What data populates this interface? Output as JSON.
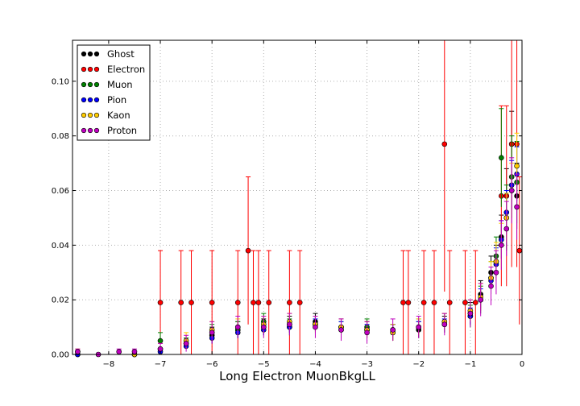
{
  "chart_data": {
    "type": "scatter",
    "title": "",
    "xlabel": "Long Electron MuonBkgLL",
    "ylabel": "",
    "xlim": [
      -8.7,
      0.0
    ],
    "ylim": [
      0.0,
      0.115
    ],
    "grid": true,
    "legend_position": "top-left",
    "x_ticks": [
      -8,
      -7,
      -6,
      -5,
      -4,
      -3,
      -2,
      -1,
      0
    ],
    "x_tick_labels": [
      "−8",
      "−7",
      "−6",
      "−5",
      "−4",
      "−3",
      "−2",
      "−1",
      "0"
    ],
    "y_ticks": [
      0.0,
      0.02,
      0.04,
      0.06,
      0.08,
      0.1
    ],
    "y_tick_labels": [
      "0.00",
      "0.02",
      "0.04",
      "0.06",
      "0.08",
      "0.10"
    ],
    "series": [
      {
        "name": "Ghost",
        "color": "#000000",
        "x": [
          -8.6,
          -7.5,
          -6.5,
          -6.0,
          -5.5,
          -5.0,
          -4.5,
          -4.0,
          -3.5,
          -3.0,
          -2.5,
          -2.0,
          -1.5,
          -1.0,
          -0.8,
          -0.6,
          -0.5,
          -0.4,
          -0.3,
          -0.2,
          -0.1
        ],
        "y": [
          0.0,
          0.0,
          0.004,
          0.007,
          0.009,
          0.01,
          0.011,
          0.012,
          0.01,
          0.009,
          0.008,
          0.009,
          0.011,
          0.015,
          0.022,
          0.03,
          0.034,
          0.043,
          0.058,
          0.077,
          0.058
        ],
        "err": [
          0.0,
          0.0,
          0.002,
          0.003,
          0.003,
          0.003,
          0.003,
          0.003,
          0.003,
          0.003,
          0.003,
          0.003,
          0.003,
          0.004,
          0.005,
          0.006,
          0.006,
          0.008,
          0.01,
          0.012,
          0.012
        ]
      },
      {
        "name": "Electron",
        "color": "#ff0000",
        "x": [
          -7.0,
          -6.6,
          -6.4,
          -6.0,
          -5.5,
          -5.3,
          -5.2,
          -5.1,
          -4.9,
          -4.5,
          -4.3,
          -2.3,
          -2.2,
          -1.9,
          -1.7,
          -1.5,
          -1.4,
          -1.1,
          -0.9,
          -0.4,
          -0.3,
          -0.2,
          -0.1,
          -0.05
        ],
        "y": [
          0.019,
          0.019,
          0.019,
          0.019,
          0.019,
          0.038,
          0.019,
          0.019,
          0.019,
          0.019,
          0.019,
          0.019,
          0.019,
          0.019,
          0.019,
          0.077,
          0.019,
          0.019,
          0.019,
          0.058,
          0.058,
          0.077,
          0.077,
          0.038
        ],
        "err": [
          0.019,
          0.019,
          0.019,
          0.019,
          0.019,
          0.027,
          0.019,
          0.019,
          0.019,
          0.019,
          0.019,
          0.019,
          0.019,
          0.019,
          0.019,
          0.054,
          0.019,
          0.019,
          0.019,
          0.033,
          0.033,
          0.045,
          0.045,
          0.027
        ]
      },
      {
        "name": "Muon",
        "color": "#008000",
        "x": [
          -7.0,
          -6.5,
          -6.0,
          -5.5,
          -5.0,
          -4.5,
          -4.0,
          -3.5,
          -3.0,
          -2.5,
          -2.0,
          -1.5,
          -1.0,
          -0.8,
          -0.6,
          -0.5,
          -0.4,
          -0.3,
          -0.2,
          -0.1
        ],
        "y": [
          0.005,
          0.004,
          0.008,
          0.009,
          0.012,
          0.01,
          0.011,
          0.009,
          0.01,
          0.008,
          0.01,
          0.012,
          0.014,
          0.02,
          0.028,
          0.036,
          0.072,
          0.05,
          0.065,
          0.063
        ],
        "err": [
          0.003,
          0.002,
          0.003,
          0.003,
          0.003,
          0.003,
          0.003,
          0.003,
          0.003,
          0.003,
          0.003,
          0.003,
          0.004,
          0.005,
          0.006,
          0.007,
          0.018,
          0.012,
          0.015,
          0.015
        ]
      },
      {
        "name": "Pion",
        "color": "#0000ff",
        "x": [
          -8.6,
          -7.5,
          -7.0,
          -6.5,
          -6.0,
          -5.5,
          -5.0,
          -4.5,
          -4.0,
          -3.5,
          -3.0,
          -2.5,
          -2.0,
          -1.5,
          -1.0,
          -0.8,
          -0.6,
          -0.5,
          -0.4,
          -0.3,
          -0.2,
          -0.1
        ],
        "y": [
          0.0,
          0.0,
          0.001,
          0.003,
          0.006,
          0.008,
          0.009,
          0.01,
          0.011,
          0.01,
          0.009,
          0.009,
          0.01,
          0.011,
          0.014,
          0.02,
          0.027,
          0.033,
          0.042,
          0.052,
          0.062,
          0.066
        ],
        "err": [
          0.0,
          0.0,
          0.001,
          0.001,
          0.002,
          0.002,
          0.002,
          0.002,
          0.002,
          0.002,
          0.002,
          0.002,
          0.002,
          0.002,
          0.003,
          0.004,
          0.005,
          0.006,
          0.007,
          0.008,
          0.009,
          0.01
        ]
      },
      {
        "name": "Kaon",
        "color": "#ffcc00",
        "x": [
          -8.6,
          -7.5,
          -7.0,
          -6.5,
          -6.0,
          -5.5,
          -5.0,
          -4.5,
          -4.0,
          -3.5,
          -3.0,
          -2.5,
          -2.0,
          -1.5,
          -1.0,
          -0.8,
          -0.6,
          -0.5,
          -0.4,
          -0.3,
          -0.2,
          -0.1
        ],
        "y": [
          0.001,
          0.0,
          0.002,
          0.005,
          0.009,
          0.01,
          0.011,
          0.012,
          0.011,
          0.01,
          0.009,
          0.008,
          0.01,
          0.012,
          0.016,
          0.021,
          0.028,
          0.034,
          0.04,
          0.05,
          0.06,
          0.069
        ],
        "err": [
          0.001,
          0.0,
          0.002,
          0.003,
          0.003,
          0.003,
          0.003,
          0.003,
          0.003,
          0.003,
          0.003,
          0.003,
          0.003,
          0.003,
          0.004,
          0.005,
          0.006,
          0.007,
          0.008,
          0.009,
          0.01,
          0.012
        ]
      },
      {
        "name": "Proton",
        "color": "#bf00bf",
        "x": [
          -8.6,
          -8.2,
          -7.8,
          -7.5,
          -7.0,
          -6.5,
          -6.0,
          -5.5,
          -5.0,
          -4.5,
          -4.0,
          -3.5,
          -3.0,
          -2.5,
          -2.0,
          -1.5,
          -1.0,
          -0.8,
          -0.6,
          -0.5,
          -0.4,
          -0.3,
          -0.2,
          -0.1
        ],
        "y": [
          0.001,
          0.0,
          0.001,
          0.001,
          0.002,
          0.004,
          0.008,
          0.01,
          0.01,
          0.011,
          0.01,
          0.009,
          0.008,
          0.009,
          0.01,
          0.011,
          0.015,
          0.02,
          0.025,
          0.03,
          0.04,
          0.046,
          0.06,
          0.054
        ],
        "err": [
          0.001,
          0.0,
          0.001,
          0.001,
          0.002,
          0.003,
          0.004,
          0.004,
          0.004,
          0.004,
          0.004,
          0.004,
          0.004,
          0.004,
          0.004,
          0.004,
          0.005,
          0.006,
          0.007,
          0.008,
          0.009,
          0.01,
          0.012,
          0.012
        ]
      }
    ]
  }
}
